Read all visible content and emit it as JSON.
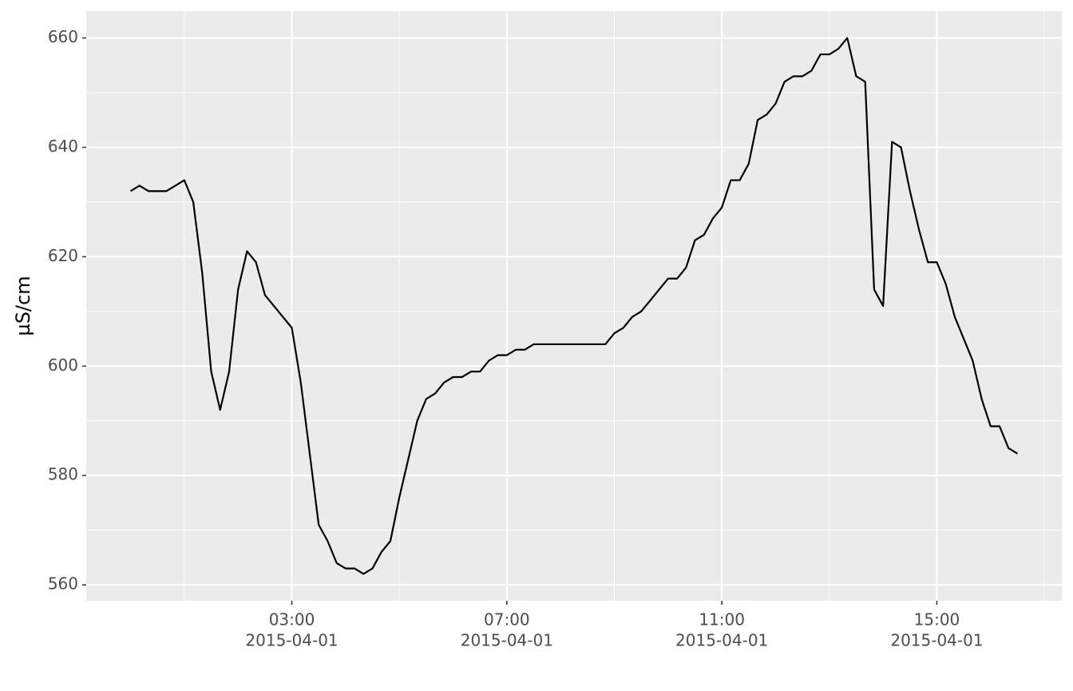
{
  "chart_data": {
    "type": "line",
    "y_label": "µS/cm",
    "x": [
      "2015-04-01 00:00",
      "2015-04-01 00:10",
      "2015-04-01 00:20",
      "2015-04-01 00:30",
      "2015-04-01 00:40",
      "2015-04-01 00:50",
      "2015-04-01 01:00",
      "2015-04-01 01:10",
      "2015-04-01 01:20",
      "2015-04-01 01:30",
      "2015-04-01 01:40",
      "2015-04-01 01:50",
      "2015-04-01 02:00",
      "2015-04-01 02:10",
      "2015-04-01 02:20",
      "2015-04-01 02:30",
      "2015-04-01 02:40",
      "2015-04-01 02:50",
      "2015-04-01 03:00",
      "2015-04-01 03:10",
      "2015-04-01 03:20",
      "2015-04-01 03:30",
      "2015-04-01 03:40",
      "2015-04-01 03:50",
      "2015-04-01 04:00",
      "2015-04-01 04:10",
      "2015-04-01 04:20",
      "2015-04-01 04:30",
      "2015-04-01 04:40",
      "2015-04-01 04:50",
      "2015-04-01 05:00",
      "2015-04-01 05:10",
      "2015-04-01 05:20",
      "2015-04-01 05:30",
      "2015-04-01 05:40",
      "2015-04-01 05:50",
      "2015-04-01 06:00",
      "2015-04-01 06:10",
      "2015-04-01 06:20",
      "2015-04-01 06:30",
      "2015-04-01 06:40",
      "2015-04-01 06:50",
      "2015-04-01 07:00",
      "2015-04-01 07:10",
      "2015-04-01 07:20",
      "2015-04-01 07:30",
      "2015-04-01 07:40",
      "2015-04-01 07:50",
      "2015-04-01 08:00",
      "2015-04-01 08:10",
      "2015-04-01 08:20",
      "2015-04-01 08:30",
      "2015-04-01 08:40",
      "2015-04-01 08:50",
      "2015-04-01 09:00",
      "2015-04-01 09:10",
      "2015-04-01 09:20",
      "2015-04-01 09:30",
      "2015-04-01 09:40",
      "2015-04-01 09:50",
      "2015-04-01 10:00",
      "2015-04-01 10:10",
      "2015-04-01 10:20",
      "2015-04-01 10:30",
      "2015-04-01 10:40",
      "2015-04-01 10:50",
      "2015-04-01 11:00",
      "2015-04-01 11:10",
      "2015-04-01 11:20",
      "2015-04-01 11:30",
      "2015-04-01 11:40",
      "2015-04-01 11:50",
      "2015-04-01 12:00",
      "2015-04-01 12:10",
      "2015-04-01 12:20",
      "2015-04-01 12:30",
      "2015-04-01 12:40",
      "2015-04-01 12:50",
      "2015-04-01 13:00",
      "2015-04-01 13:10",
      "2015-04-01 13:20",
      "2015-04-01 13:30",
      "2015-04-01 13:40",
      "2015-04-01 13:50",
      "2015-04-01 14:00",
      "2015-04-01 14:10",
      "2015-04-01 14:20",
      "2015-04-01 14:30",
      "2015-04-01 14:40",
      "2015-04-01 14:50",
      "2015-04-01 15:00",
      "2015-04-01 15:10",
      "2015-04-01 15:20",
      "2015-04-01 15:30",
      "2015-04-01 15:40",
      "2015-04-01 15:50",
      "2015-04-01 16:00",
      "2015-04-01 16:10",
      "2015-04-01 16:20",
      "2015-04-01 16:30"
    ],
    "values": [
      632,
      633,
      632,
      632,
      632,
      633,
      634,
      630,
      617,
      599,
      592,
      599,
      614,
      621,
      619,
      613,
      611,
      609,
      607,
      597,
      584,
      571,
      568,
      564,
      563,
      563,
      562,
      563,
      566,
      568,
      576,
      583,
      590,
      594,
      595,
      597,
      598,
      598,
      599,
      599,
      601,
      602,
      602,
      603,
      603,
      604,
      604,
      604,
      604,
      604,
      604,
      604,
      604,
      604,
      606,
      607,
      609,
      610,
      612,
      614,
      616,
      616,
      618,
      623,
      624,
      627,
      629,
      634,
      634,
      637,
      645,
      646,
      648,
      652,
      653,
      653,
      654,
      657,
      657,
      658,
      660,
      653,
      652,
      614,
      611,
      641,
      640,
      632,
      625,
      619,
      619,
      615,
      609,
      605,
      601,
      594,
      589,
      589,
      585,
      584
    ],
    "color": "#000000",
    "ylim": [
      557.1,
      664.9
    ],
    "yticks": [
      560,
      580,
      600,
      620,
      640,
      660
    ],
    "xticks": [
      {
        "value": "2015-04-01 03:00",
        "label": [
          "03:00",
          "2015-04-01"
        ]
      },
      {
        "value": "2015-04-01 07:00",
        "label": [
          "07:00",
          "2015-04-01"
        ]
      },
      {
        "value": "2015-04-01 11:00",
        "label": [
          "11:00",
          "2015-04-01"
        ]
      },
      {
        "value": "2015-04-01 15:00",
        "label": [
          "15:00",
          "2015-04-01"
        ]
      }
    ],
    "grid": true
  }
}
